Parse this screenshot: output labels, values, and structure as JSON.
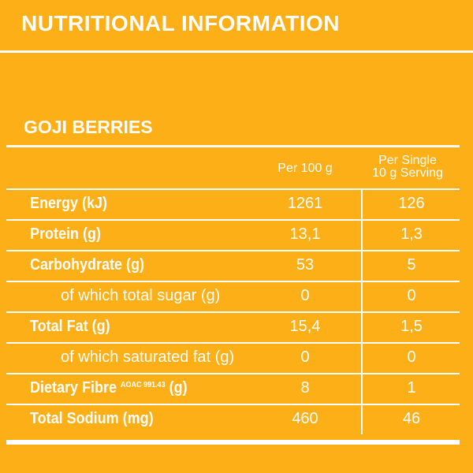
{
  "header": {
    "title": "NUTRITIONAL INFORMATION"
  },
  "product": {
    "name": "GOJI BERRIES"
  },
  "table": {
    "columns": [
      "Per 100 g",
      "Per Single",
      "10 g Serving"
    ],
    "rows": [
      {
        "label": "Energy (kJ)",
        "per100": "1261",
        "serving": "126",
        "indent": false
      },
      {
        "label": "Protein (g)",
        "per100": "13,1",
        "serving": "1,3",
        "indent": false
      },
      {
        "label": "Carbohydrate (g)",
        "per100": "53",
        "serving": "5",
        "indent": false
      },
      {
        "label": "of which total sugar (g)",
        "per100": "0",
        "serving": "0",
        "indent": true
      },
      {
        "label": "Total Fat (g)",
        "per100": "15,4",
        "serving": "1,5",
        "indent": false
      },
      {
        "label": "of which saturated fat (g)",
        "per100": "0",
        "serving": "0",
        "indent": true
      },
      {
        "label": "Dietary Fibre",
        "sup": "AOAC 991.43",
        "unit": "(g)",
        "per100": "8",
        "serving": "1",
        "indent": false
      },
      {
        "label": "Total Sodium (mg)",
        "per100": "460",
        "serving": "46",
        "indent": false
      }
    ]
  },
  "colors": {
    "background": "#FCAF17",
    "text": "#FFFFFF"
  }
}
